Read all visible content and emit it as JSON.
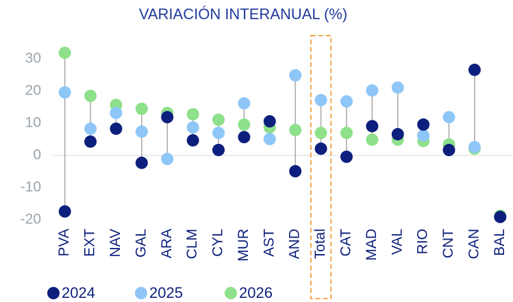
{
  "chart_data": {
    "type": "dot",
    "title": "VARIACIÓN INTERANUAL (%)",
    "categories": [
      "PVA",
      "EXT",
      "NAV",
      "GAL",
      "ARA",
      "CLM",
      "CYL",
      "MUR",
      "AST",
      "AND",
      "Total",
      "CAT",
      "MAD",
      "VAL",
      "RIO",
      "CNT",
      "CAN",
      "BAL"
    ],
    "series": [
      {
        "name": "2024",
        "color": "#0d1f7c",
        "values": [
          -17.4,
          4.3,
          8.3,
          -2.3,
          11.9,
          4.7,
          1.7,
          5.7,
          10.6,
          -4.9,
          2.1,
          -0.4,
          9.1,
          6.6,
          9.6,
          1.7,
          26.6,
          -19.1
        ]
      },
      {
        "name": "2025",
        "color": "#8ec6f7",
        "values": [
          19.6,
          8.3,
          13.2,
          7.4,
          -1.1,
          8.7,
          7.0,
          16.2,
          5.1,
          24.9,
          17.2,
          16.8,
          20.2,
          21.1,
          6.2,
          11.9,
          2.6,
          -19.1
        ]
      },
      {
        "name": "2026",
        "color": "#8ee08a",
        "values": [
          31.9,
          18.5,
          15.7,
          14.5,
          13.2,
          12.8,
          11.1,
          9.6,
          8.7,
          7.9,
          7.0,
          7.0,
          4.9,
          4.9,
          4.5,
          3.4,
          2.1,
          -18.7
        ]
      }
    ],
    "ylim": [
      -20,
      35
    ],
    "yticks": [
      -20,
      -10,
      0,
      10,
      20,
      30
    ],
    "highlight": "Total",
    "legend": "bottom"
  }
}
